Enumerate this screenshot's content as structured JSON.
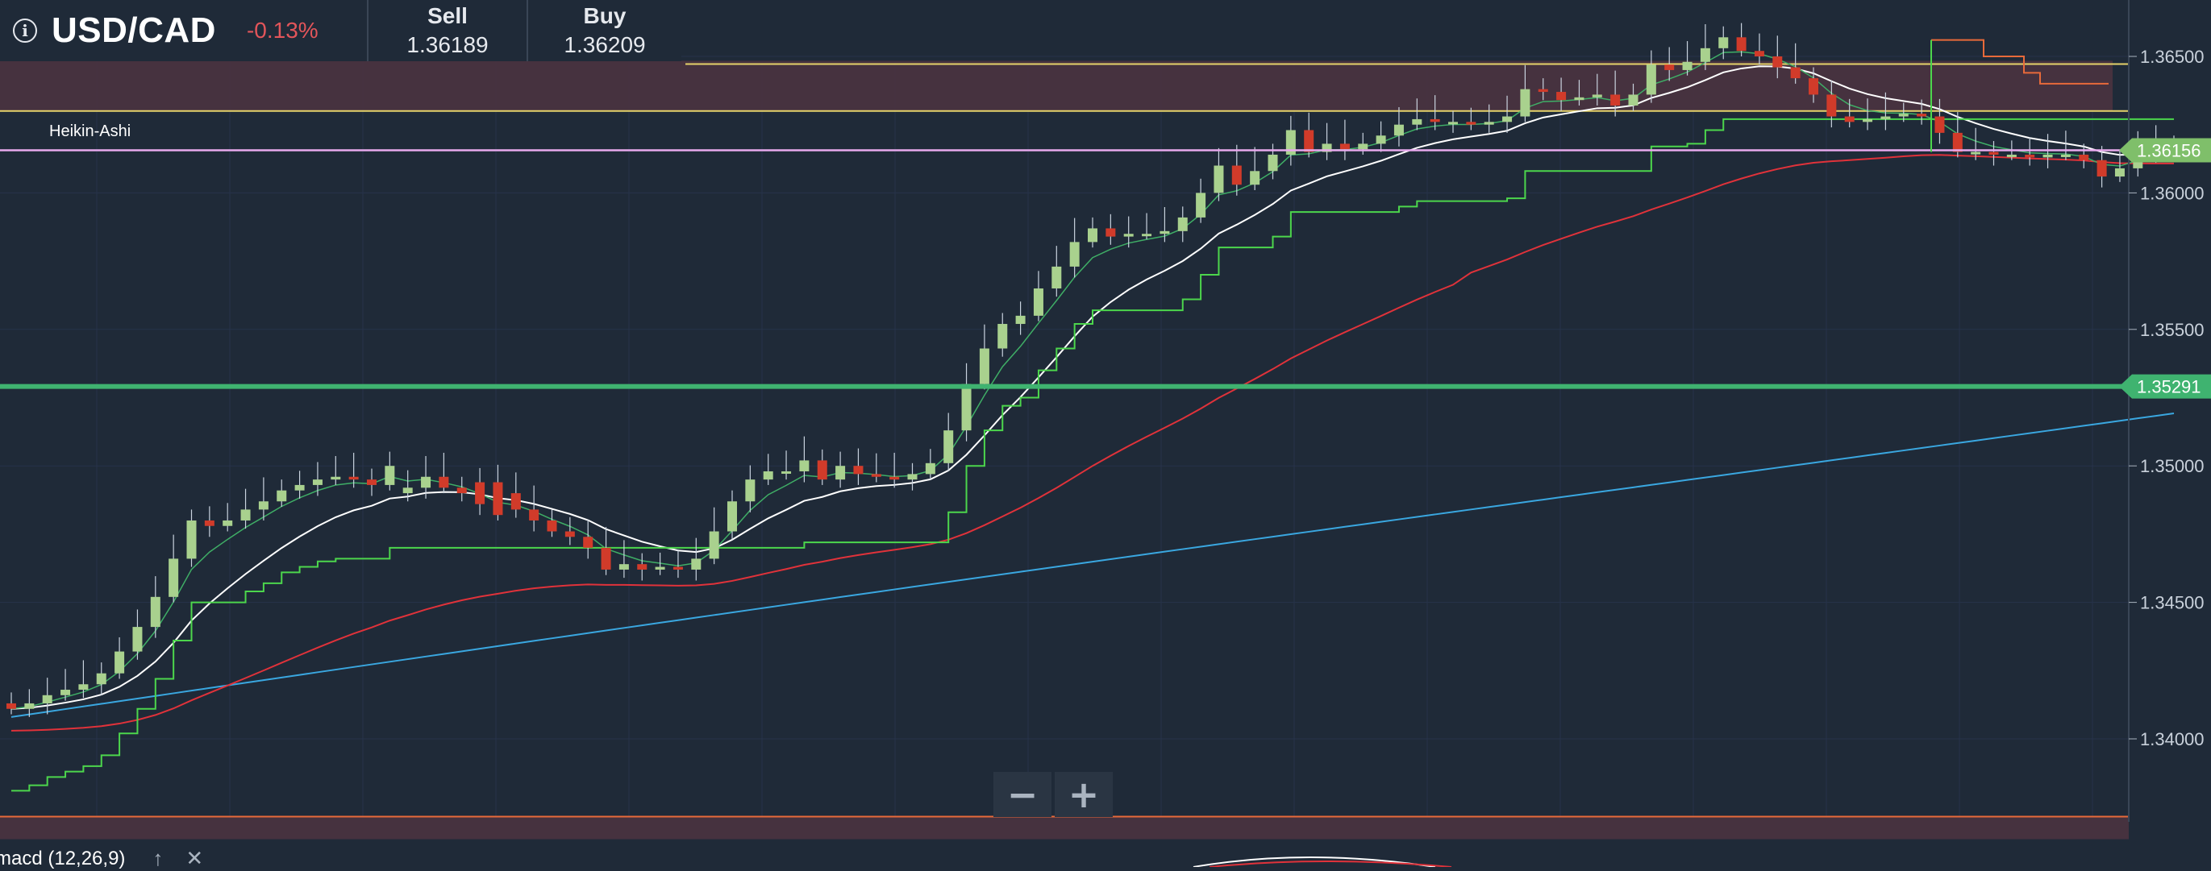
{
  "header": {
    "symbol": "USD/CAD",
    "change": "-0.13%",
    "sell_label": "Sell",
    "sell_price": "1.36189",
    "buy_label": "Buy",
    "buy_price": "1.36209",
    "info_icon": "info-circle-icon"
  },
  "study_label": "Heikin-Ashi",
  "zoom": {
    "minus": "−",
    "plus": "+"
  },
  "macd": {
    "label": "macd (12,26,9)",
    "up_icon": "arrow-up-icon",
    "close_icon": "close-icon"
  },
  "colors": {
    "background": "#1f2a38",
    "bull_candle": "#a9d18e",
    "bear_candle": "#d13b2a",
    "ema_fast": "#3fae66",
    "ema_mid": "#ffffff",
    "ema_slow": "#e0323a",
    "sma_long": "#3aa7e0",
    "stepline": "#4cd64c",
    "support_line": "#3fb370",
    "current_price_line": "#e8a9ee",
    "resistance_band_line": "#e6d36a",
    "orange_line": "#e86a3a"
  },
  "chart_data": {
    "type": "candlestick",
    "style": "Heikin-Ashi",
    "y_axis": {
      "ticks": [
        1.34,
        1.345,
        1.35,
        1.355,
        1.36,
        1.365
      ],
      "tick_labels": [
        "1.34000",
        "1.34500",
        "1.35000",
        "1.35500",
        "1.36000",
        "1.36500"
      ],
      "range": [
        1.3376,
        1.3665
      ]
    },
    "current_price": {
      "value": 1.36156,
      "label": "1.36156"
    },
    "support_level": {
      "value": 1.35291,
      "label": "1.35291"
    },
    "resistance_band": [
      1.363,
      1.36472
    ],
    "bottom_band_top": 1.33715,
    "grid": true,
    "opens": [
      1.3413,
      1.3411,
      1.3413,
      1.3416,
      1.3418,
      1.342,
      1.3424,
      1.3432,
      1.3441,
      1.3452,
      1.3466,
      1.348,
      1.3478,
      1.348,
      1.3484,
      1.3487,
      1.3491,
      1.3493,
      1.3495,
      1.3496,
      1.3495,
      1.3493,
      1.349,
      1.3492,
      1.3496,
      1.3492,
      1.3494,
      1.3494,
      1.349,
      1.3484,
      1.348,
      1.3476,
      1.3474,
      1.347,
      1.3462,
      1.3464,
      1.3462,
      1.3463,
      1.3462,
      1.3466,
      1.3476,
      1.3487,
      1.3495,
      1.3498,
      1.3498,
      1.3502,
      1.3495,
      1.35,
      1.3497,
      1.3496,
      1.3495,
      1.3497,
      1.3501,
      1.3513,
      1.353,
      1.3543,
      1.3552,
      1.3555,
      1.3565,
      1.3573,
      1.3582,
      1.3587,
      1.3584,
      1.3585,
      1.3585,
      1.3586,
      1.3591,
      1.36,
      1.361,
      1.3603,
      1.3608,
      1.3614,
      1.3623,
      1.3615,
      1.3618,
      1.3616,
      1.3618,
      1.3621,
      1.3625,
      1.3627,
      1.3626,
      1.3626,
      1.3625,
      1.3626,
      1.3628,
      1.3638,
      1.3637,
      1.3634,
      1.3635,
      1.3636,
      1.3632,
      1.3636,
      1.3647,
      1.3645,
      1.3648,
      1.3653,
      1.3657,
      1.3652,
      1.365,
      1.3646,
      1.3642,
      1.3636,
      1.3628,
      1.3626,
      1.3627,
      1.3628,
      1.3629,
      1.3628,
      1.3622,
      1.3615,
      1.3615,
      1.3614,
      1.3614,
      1.3613,
      1.3614,
      1.3614,
      1.3612,
      1.3606,
      1.3609,
      1.3615,
      1.3616
    ],
    "closes": [
      1.3411,
      1.3413,
      1.3416,
      1.3418,
      1.342,
      1.3424,
      1.3432,
      1.3441,
      1.3452,
      1.3466,
      1.348,
      1.3478,
      1.348,
      1.3484,
      1.3487,
      1.3491,
      1.3493,
      1.3495,
      1.3496,
      1.3495,
      1.3493,
      1.35,
      1.3492,
      1.3496,
      1.3492,
      1.349,
      1.3486,
      1.3482,
      1.3484,
      1.348,
      1.3476,
      1.3474,
      1.347,
      1.3462,
      1.3464,
      1.3462,
      1.3463,
      1.3462,
      1.3466,
      1.3476,
      1.3487,
      1.3495,
      1.3498,
      1.3498,
      1.3502,
      1.3495,
      1.35,
      1.3497,
      1.3496,
      1.3495,
      1.3497,
      1.3501,
      1.3513,
      1.353,
      1.3543,
      1.3552,
      1.3555,
      1.3565,
      1.3573,
      1.3582,
      1.3587,
      1.3584,
      1.3585,
      1.3585,
      1.3586,
      1.3591,
      1.36,
      1.361,
      1.3603,
      1.3608,
      1.3614,
      1.3623,
      1.3615,
      1.3618,
      1.3616,
      1.3618,
      1.3621,
      1.3625,
      1.3627,
      1.3626,
      1.3626,
      1.3625,
      1.3626,
      1.3628,
      1.3638,
      1.3637,
      1.3634,
      1.3635,
      1.3636,
      1.3632,
      1.3636,
      1.3647,
      1.3645,
      1.3648,
      1.3653,
      1.3657,
      1.3652,
      1.365,
      1.3646,
      1.3642,
      1.3636,
      1.3628,
      1.3626,
      1.3627,
      1.3628,
      1.3629,
      1.3628,
      1.3622,
      1.3615,
      1.3615,
      1.3614,
      1.3614,
      1.3613,
      1.3614,
      1.3614,
      1.3612,
      1.3606,
      1.3609,
      1.3615,
      1.3616,
      1.3617
    ]
  }
}
